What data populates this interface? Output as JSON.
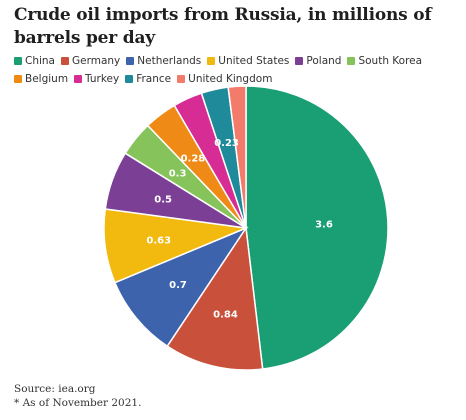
{
  "title": "Crude oil imports from Russia, in millions of barrels per day",
  "source": "Source: iea.org",
  "note": "* As of November 2021.",
  "chart_data": {
    "type": "pie",
    "title": "Crude oil imports from Russia, in millions of barrels per day",
    "legend_position": "top",
    "categories": [
      "China",
      "Germany",
      "Netherlands",
      "United States",
      "Poland",
      "South Korea",
      "Belgium",
      "Turkey",
      "France",
      "United Kingdom"
    ],
    "values": [
      3.6,
      0.84,
      0.7,
      0.63,
      0.5,
      0.3,
      0.28,
      0.25,
      0.23,
      0.15
    ],
    "data_labels": [
      "3.6",
      "0.84",
      "0.7",
      "0.63",
      "0.5",
      "0.3",
      "0.28",
      "",
      "0.23",
      ""
    ],
    "colors": [
      "#1a9e74",
      "#c9503a",
      "#3d63ad",
      "#f2b90f",
      "#7b3f96",
      "#86c35a",
      "#ef8a17",
      "#d72c94",
      "#1f8a9a",
      "#f27b6c"
    ]
  }
}
